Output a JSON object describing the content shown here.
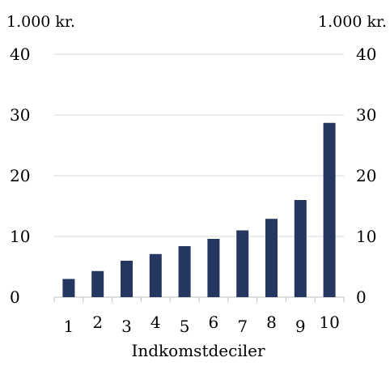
{
  "chart_data": {
    "type": "bar",
    "title": "",
    "left_unit_label": "1.000 kr.",
    "right_unit_label": "1.000 kr.",
    "xlabel": "Indkomstdeciler",
    "ylabel": "",
    "categories": [
      "1",
      "2",
      "3",
      "4",
      "5",
      "6",
      "7",
      "8",
      "9",
      "10"
    ],
    "values": [
      3.0,
      4.3,
      6.0,
      7.1,
      8.4,
      9.6,
      11.0,
      12.9,
      16.0,
      28.7
    ],
    "ylim": [
      0,
      40
    ],
    "yticks": [
      0,
      10,
      20,
      30,
      40
    ],
    "ytick_labels": [
      "0",
      "10",
      "20",
      "30",
      "40"
    ],
    "secondary_yticks": [
      0,
      10,
      20,
      30,
      40
    ],
    "secondary_ytick_labels": [
      "0",
      "10",
      "20",
      "30",
      "40"
    ],
    "grid": true,
    "legend": "none",
    "colors": {
      "bar": "#253760",
      "grid": "#d9d9d9",
      "axis": "#bfbfbf",
      "text": "#000000"
    }
  }
}
